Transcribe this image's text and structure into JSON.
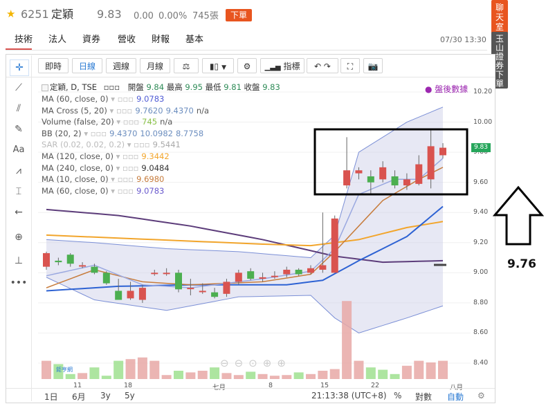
{
  "header": {
    "code": "6251",
    "name": "定穎",
    "price": "9.83",
    "change": "0.00",
    "change_pct": "0.00%",
    "volume": "745張",
    "sell_button": "下單"
  },
  "tabs": [
    "技術",
    "法人",
    "資券",
    "營收",
    "財報",
    "基本"
  ],
  "datetime": "07/30 13:30",
  "side_banner": {
    "top": "聊天室",
    "bottom": "玉山證券下單"
  },
  "toolbar": {
    "realtime": "即時",
    "daily": "日線",
    "weekly": "週線",
    "monthly": "月線",
    "indicators": "指標"
  },
  "legend": {
    "symbol_line": "定穎, D, TSE",
    "open_label": "開盤",
    "open": "9.84",
    "high_label": "最高",
    "high": "9.95",
    "low_label": "最低",
    "low": "9.81",
    "close_label": "收盤",
    "close": "9.83",
    "rows": [
      {
        "label": "MA (60, close, 0)",
        "value": "9.0783",
        "color": "#4f5bd5"
      },
      {
        "label": "MA Cross (5, 20)",
        "value": "9.7620",
        "value2": "9.4370",
        "value3": "n/a",
        "color": "#6c8ebf"
      },
      {
        "label": "Volume (false, 20)",
        "value": "745",
        "value2": "n/a",
        "color": "#8bc34a"
      },
      {
        "label": "BB (20, 2)",
        "value": "9.4370",
        "value2": "10.0982",
        "value3": "8.7758",
        "color": "#6c8ebf"
      },
      {
        "label": "SAR (0.02, 0.02, 0.2)",
        "value": "9.5441",
        "color": "#aaaaaa"
      },
      {
        "label": "MA (120, close, 0)",
        "value": "9.3442",
        "color": "#f2a52b"
      },
      {
        "label": "MA (240, close, 0)",
        "value": "9.0484",
        "color": "#333333"
      },
      {
        "label": "MA (10, close, 0)",
        "value": "9.6980",
        "color": "#c77c3c"
      },
      {
        "label": "MA (60, close, 0)",
        "value": "9.0783",
        "color": "#6a5acd"
      }
    ]
  },
  "after_hours": "● 盤後數據",
  "price_tag": "9.83",
  "y_ticks": [
    "10.20",
    "10.00",
    "9.80",
    "9.60",
    "9.40",
    "9.20",
    "9.00",
    "8.80",
    "8.60",
    "8.40"
  ],
  "x_ticks": [
    "11",
    "18",
    "七月",
    "8",
    "15",
    "22",
    "八月"
  ],
  "bottom_bar": {
    "ranges": [
      "1日",
      "6月",
      "3y",
      "5y"
    ],
    "time": "21:13:38 (UTC+8)",
    "pct": "%",
    "log": "對數",
    "auto": "自動"
  },
  "watermark": "鉅亨網",
  "annotation_value": "9.76",
  "colors": {
    "up": "#d9534f",
    "down": "#4caf50",
    "band": "#c9cbe6",
    "accent": "#e8551f"
  }
}
